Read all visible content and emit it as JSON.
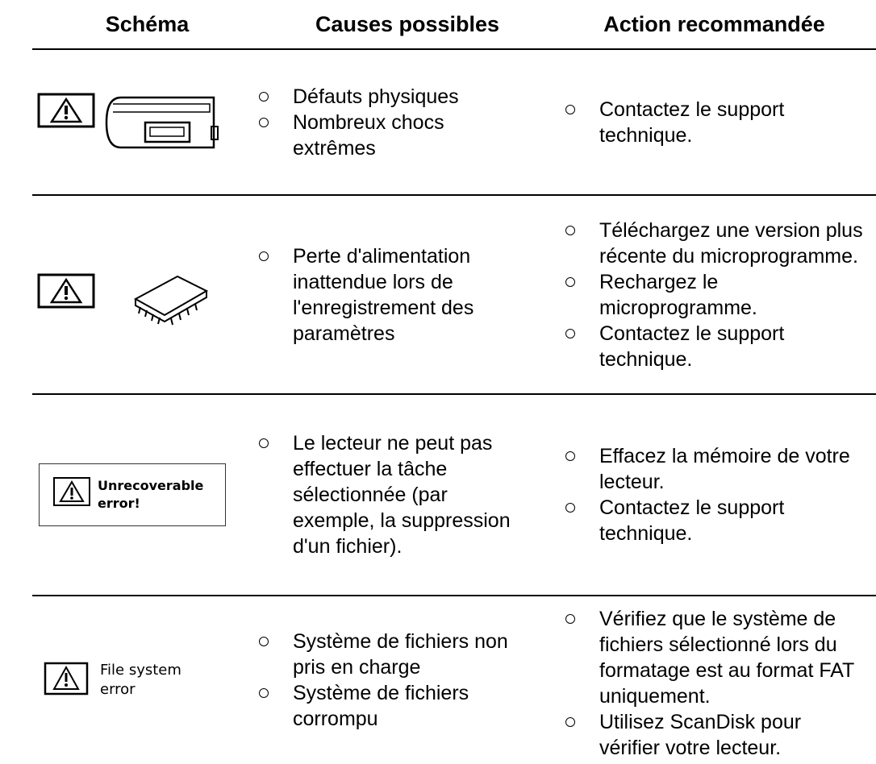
{
  "header": {
    "columns": [
      "Schéma",
      "Causes possibles",
      "Action recommandée"
    ]
  },
  "rows": [
    {
      "causes": [
        "Défauts physiques",
        "Nombreux chocs extrêmes"
      ],
      "actions": [
        "Contactez le support technique."
      ]
    },
    {
      "causes": [
        "Perte d'alimentation inattendue lors de l'enregistrement des paramètres"
      ],
      "actions": [
        "Téléchargez une version plus récente du microprogramme.",
        "Rechargez le microprogramme.",
        "Contactez le support technique."
      ]
    },
    {
      "schema_text": "Unrecoverable error!",
      "causes": [
        "Le lecteur ne peut pas effectuer la tâche sélectionnée (par exemple, la suppression d'un fichier)."
      ],
      "actions": [
        "Effacez la mémoire de votre lecteur.",
        "Contactez le support technique."
      ]
    },
    {
      "schema_text": "File system error",
      "causes": [
        "Système de fichiers non pris en charge",
        "Système de fichiers corrompu"
      ],
      "actions": [
        "Vérifiez que le système de fichiers sélectionné lors du formatage est au format FAT uniquement.",
        "Utilisez ScanDisk pour vérifier votre lecteur."
      ]
    }
  ]
}
